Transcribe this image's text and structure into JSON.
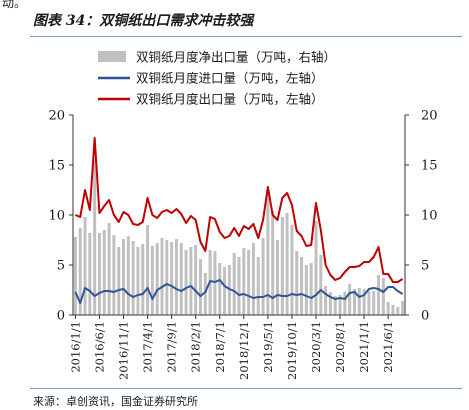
{
  "page": {
    "top_fragment": "动。",
    "title": "图表 34：双铜纸出口需求冲击较强",
    "source": "来源：卓创资讯，国金证券研究所"
  },
  "colors": {
    "bar": "#c0c0c0",
    "import_line": "#2f5597",
    "export_line": "#c00000",
    "rule": "#7a9cc4"
  },
  "chart_data": {
    "type": "bar+line",
    "legend_position": "top-right",
    "grid": false,
    "left_axis": {
      "ylim": [
        0,
        20
      ],
      "ticks": [
        0,
        5,
        10,
        15,
        20
      ]
    },
    "right_axis": {
      "ylim": [
        0,
        20
      ],
      "ticks": [
        0,
        5,
        10,
        15,
        20
      ]
    },
    "x_tick_labels": [
      "2016/1/1",
      "2016/6/1",
      "2016/11/1",
      "2017/4/1",
      "2017/9/1",
      "2018/2/1",
      "2018/7/1",
      "2018/12/1",
      "2019/5/1",
      "2019/10/1",
      "2020/3/1",
      "2020/8/1",
      "2021/1/1",
      "2021/6/1"
    ],
    "x": [
      "2016/1",
      "2016/2",
      "2016/3",
      "2016/4",
      "2016/5",
      "2016/6",
      "2016/7",
      "2016/8",
      "2016/9",
      "2016/10",
      "2016/11",
      "2016/12",
      "2017/1",
      "2017/2",
      "2017/3",
      "2017/4",
      "2017/5",
      "2017/6",
      "2017/7",
      "2017/8",
      "2017/9",
      "2017/10",
      "2017/11",
      "2017/12",
      "2018/1",
      "2018/2",
      "2018/3",
      "2018/4",
      "2018/5",
      "2018/6",
      "2018/7",
      "2018/8",
      "2018/9",
      "2018/10",
      "2018/11",
      "2018/12",
      "2019/1",
      "2019/2",
      "2019/3",
      "2019/4",
      "2019/5",
      "2019/6",
      "2019/7",
      "2019/8",
      "2019/9",
      "2019/10",
      "2019/11",
      "2019/12",
      "2020/1",
      "2020/2",
      "2020/3",
      "2020/4",
      "2020/5",
      "2020/6",
      "2020/7",
      "2020/8",
      "2020/9",
      "2020/10",
      "2020/11",
      "2020/12",
      "2021/1",
      "2021/2",
      "2021/3",
      "2021/4",
      "2021/5",
      "2021/6",
      "2021/7",
      "2021/8",
      "2021/9"
    ],
    "series": [
      {
        "name": "双铜纸月度净出口量（万吨，右轴）",
        "kind": "bar",
        "axis": "right",
        "values": [
          7.8,
          8.7,
          9.8,
          8.2,
          15.5,
          8.2,
          8.5,
          9.2,
          8.0,
          6.8,
          7.6,
          7.9,
          7.4,
          6.8,
          7.1,
          9.0,
          6.9,
          7.2,
          7.7,
          7.5,
          7.3,
          7.6,
          7.2,
          6.5,
          6.8,
          7.0,
          5.6,
          4.2,
          6.5,
          6.4,
          5.2,
          4.8,
          5.0,
          6.2,
          5.8,
          6.7,
          6.5,
          7.2,
          5.8,
          7.7,
          12.4,
          10.4,
          7.5,
          9.8,
          10.2,
          9.0,
          6.4,
          5.8,
          5.0,
          5.2,
          9.4,
          6.0,
          2.9,
          2.3,
          1.9,
          2.0,
          2.3,
          3.1,
          2.6,
          2.7,
          2.6,
          2.4,
          2.4,
          4.0,
          3.7,
          1.3,
          1.0,
          0.8,
          1.4
        ]
      },
      {
        "name": "双铜纸月度进口量（万吨，左轴）",
        "kind": "line",
        "axis": "left",
        "values": [
          2.3,
          1.2,
          2.7,
          2.4,
          1.9,
          2.2,
          2.4,
          2.4,
          2.3,
          2.5,
          2.6,
          2.1,
          1.8,
          2.0,
          2.1,
          2.7,
          1.6,
          2.5,
          2.8,
          3.1,
          2.9,
          2.6,
          2.4,
          2.7,
          2.9,
          2.4,
          1.9,
          2.3,
          3.4,
          3.3,
          3.5,
          2.9,
          2.6,
          2.4,
          2.0,
          2.1,
          1.9,
          1.7,
          1.8,
          1.8,
          2.0,
          1.7,
          2.0,
          1.9,
          1.9,
          2.1,
          2.0,
          2.1,
          1.9,
          1.7,
          2.0,
          2.5,
          2.1,
          1.8,
          1.6,
          1.7,
          1.6,
          2.2,
          2.3,
          1.8,
          2.0,
          2.6,
          2.7,
          2.6,
          2.3,
          2.8,
          2.8,
          2.4,
          2.1
        ]
      },
      {
        "name": "双铜纸月度出口量（万吨，左轴）",
        "kind": "line",
        "axis": "left",
        "values": [
          10.0,
          9.8,
          12.5,
          10.5,
          17.7,
          10.2,
          10.9,
          11.5,
          10.0,
          9.3,
          10.3,
          10.0,
          9.1,
          9.0,
          9.3,
          11.7,
          10.0,
          9.7,
          10.3,
          10.5,
          10.2,
          10.6,
          10.1,
          9.2,
          9.9,
          9.5,
          7.3,
          6.4,
          9.8,
          9.6,
          8.3,
          7.7,
          7.9,
          8.7,
          7.9,
          8.9,
          8.6,
          9.1,
          7.7,
          9.5,
          12.8,
          10.0,
          9.5,
          11.7,
          12.2,
          11.0,
          8.4,
          7.9,
          6.9,
          7.0,
          11.2,
          8.5,
          5.0,
          4.0,
          3.5,
          3.7,
          4.3,
          4.8,
          4.8,
          4.9,
          5.3,
          5.3,
          5.8,
          6.8,
          4.1,
          4.1,
          3.3,
          3.3,
          3.6
        ]
      }
    ]
  }
}
